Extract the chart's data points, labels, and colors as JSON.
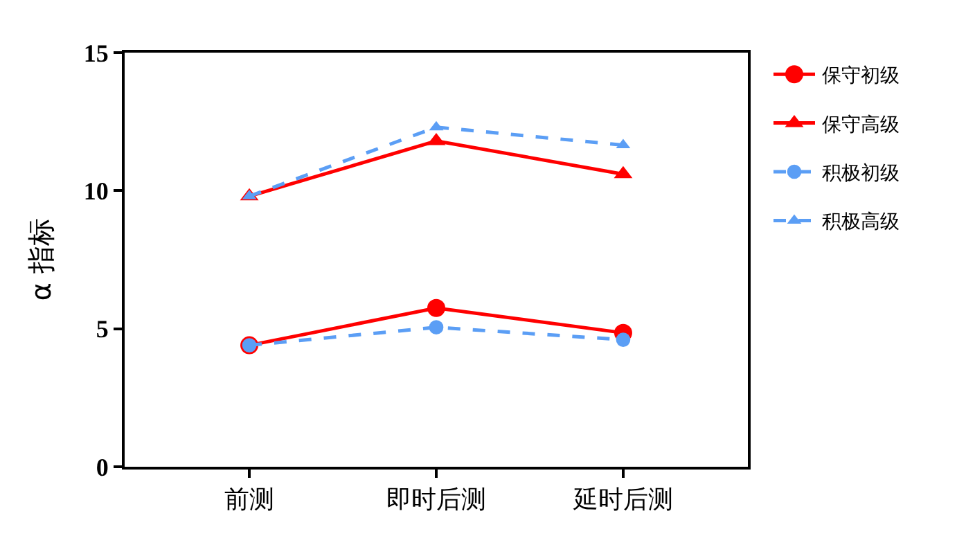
{
  "chart_data": {
    "type": "line",
    "ylabel": "α 指标",
    "categories": [
      "前测",
      "即时后测",
      "延时后测"
    ],
    "series": [
      {
        "name": "保守初级",
        "color": "#ff0000",
        "values": [
          4.4,
          5.75,
          4.85
        ],
        "marker": "circle",
        "line_style": "solid"
      },
      {
        "name": "保守高级",
        "color": "#ff0000",
        "values": [
          9.8,
          11.8,
          10.6
        ],
        "marker": "triangle",
        "line_style": "solid"
      },
      {
        "name": "积极初级",
        "color": "#5b9ef5",
        "values": [
          4.4,
          5.05,
          4.6
        ],
        "marker": "circle",
        "line_style": "dashed"
      },
      {
        "name": "积极高级",
        "color": "#5b9ef5",
        "values": [
          9.8,
          12.3,
          11.65
        ],
        "marker": "triangle",
        "line_style": "dashed"
      }
    ],
    "ylim": [
      0,
      15
    ],
    "yticks": [
      0,
      5,
      10,
      15
    ],
    "grid": false,
    "legend": "top right"
  }
}
